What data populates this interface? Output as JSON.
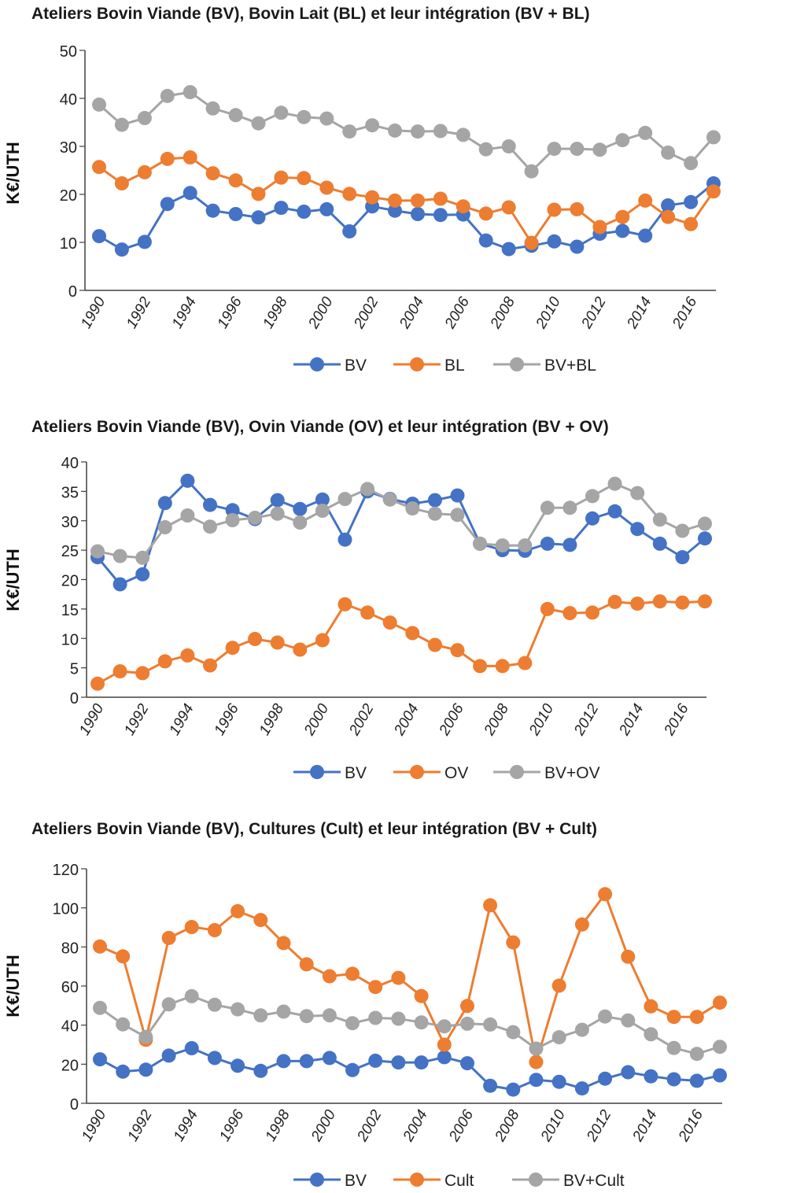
{
  "colors": {
    "blue": "#4472C4",
    "orange": "#ED7D31",
    "gray": "#A5A5A5",
    "axis": "#404040"
  },
  "chart_data": [
    {
      "type": "line",
      "title": "Ateliers Bovin Viande (BV), Bovin Lait (BL) et leur intégration (BV + BL)",
      "xlabel": "",
      "ylabel": "K€/UTH",
      "ylim": [
        0,
        50
      ],
      "yticks": [
        0,
        10,
        20,
        30,
        40,
        50
      ],
      "x": [
        1990,
        1991,
        1992,
        1993,
        1994,
        1995,
        1996,
        1997,
        1998,
        1999,
        2000,
        2001,
        2002,
        2003,
        2004,
        2005,
        2006,
        2007,
        2008,
        2009,
        2010,
        2011,
        2012,
        2013,
        2014,
        2015,
        2016,
        2017
      ],
      "xtick_labels": [
        "1990",
        "1992",
        "1994",
        "1996",
        "1998",
        "2000",
        "2002",
        "2004",
        "2006",
        "2008",
        "2010",
        "2012",
        "2014",
        "2016"
      ],
      "grid": false,
      "legend_position": "bottom",
      "series": [
        {
          "name": "BV",
          "color_key": "blue",
          "values": [
            11.3,
            8.5,
            10.1,
            18.0,
            20.3,
            16.6,
            15.9,
            15.2,
            17.2,
            16.4,
            16.9,
            12.3,
            17.5,
            16.6,
            15.9,
            15.7,
            15.8,
            10.4,
            8.6,
            9.3,
            10.2,
            9.1,
            11.8,
            12.4,
            11.4,
            17.7,
            18.4,
            22.3
          ]
        },
        {
          "name": "BL",
          "color_key": "orange",
          "values": [
            25.7,
            22.3,
            24.6,
            27.4,
            27.7,
            24.4,
            22.9,
            20.1,
            23.5,
            23.4,
            21.4,
            20.1,
            19.4,
            18.7,
            18.7,
            19.1,
            17.5,
            16.0,
            17.3,
            9.9,
            16.8,
            16.9,
            13.2,
            15.3,
            18.7,
            15.3,
            13.8,
            20.6
          ]
        },
        {
          "name": "BV+BL",
          "color_key": "gray",
          "values": [
            38.7,
            34.5,
            35.9,
            40.5,
            41.3,
            37.9,
            36.5,
            34.8,
            37.0,
            36.1,
            35.8,
            33.1,
            34.4,
            33.3,
            33.1,
            33.2,
            32.4,
            29.4,
            30.0,
            24.8,
            29.5,
            29.5,
            29.3,
            31.3,
            32.8,
            28.7,
            26.5,
            31.9
          ]
        }
      ]
    },
    {
      "type": "line",
      "title": "Ateliers Bovin Viande (BV), Ovin Viande (OV) et leur intégration (BV + OV)",
      "xlabel": "",
      "ylabel": "K€/UTH",
      "ylim": [
        0,
        40
      ],
      "yticks": [
        0,
        5,
        10,
        15,
        20,
        25,
        30,
        35,
        40
      ],
      "x": [
        1990,
        1991,
        1992,
        1993,
        1994,
        1995,
        1996,
        1997,
        1998,
        1999,
        2000,
        2001,
        2002,
        2003,
        2004,
        2005,
        2006,
        2007,
        2008,
        2009,
        2010,
        2011,
        2012,
        2013,
        2014,
        2015,
        2016,
        2017
      ],
      "xtick_labels": [
        "1990",
        "1992",
        "1994",
        "1996",
        "1998",
        "2000",
        "2002",
        "2004",
        "2006",
        "2008",
        "2010",
        "2012",
        "2014",
        "2016"
      ],
      "grid": false,
      "legend_position": "bottom",
      "series": [
        {
          "name": "BV",
          "color_key": "blue",
          "values": [
            23.8,
            19.2,
            20.9,
            33.0,
            36.8,
            32.7,
            31.8,
            30.3,
            33.5,
            32.0,
            33.6,
            26.8,
            35.0,
            33.7,
            32.9,
            33.5,
            34.3,
            26.1,
            25.0,
            24.9,
            26.1,
            25.9,
            30.4,
            31.6,
            28.6,
            26.1,
            23.8,
            27.0
          ]
        },
        {
          "name": "OV",
          "color_key": "orange",
          "values": [
            2.3,
            4.4,
            4.1,
            6.1,
            7.1,
            5.4,
            8.4,
            9.9,
            9.3,
            8.1,
            9.7,
            15.8,
            14.4,
            12.7,
            10.9,
            8.9,
            8.0,
            5.3,
            5.3,
            5.8,
            15.0,
            14.3,
            14.4,
            16.2,
            15.9,
            16.3,
            16.1,
            16.3
          ]
        },
        {
          "name": "BV+OV",
          "color_key": "gray",
          "values": [
            24.8,
            24.0,
            23.7,
            28.9,
            30.9,
            29.0,
            30.1,
            30.5,
            31.2,
            29.7,
            31.7,
            33.7,
            35.4,
            33.6,
            32.1,
            31.2,
            31.0,
            26.1,
            25.8,
            25.8,
            32.2,
            32.2,
            34.2,
            36.3,
            34.7,
            30.2,
            28.3,
            29.5
          ]
        }
      ]
    },
    {
      "type": "line",
      "title": "Ateliers Bovin Viande (BV), Cultures (Cult) et leur intégration (BV + Cult)",
      "xlabel": "",
      "ylabel": "K€/UTH",
      "ylim": [
        0,
        120
      ],
      "yticks": [
        0,
        20,
        40,
        60,
        80,
        100,
        120
      ],
      "x": [
        1990,
        1991,
        1992,
        1993,
        1994,
        1995,
        1996,
        1997,
        1998,
        1999,
        2000,
        2001,
        2002,
        2003,
        2004,
        2005,
        2006,
        2007,
        2008,
        2009,
        2010,
        2011,
        2012,
        2013,
        2014,
        2015,
        2016,
        2017
      ],
      "xtick_labels": [
        "1990",
        "1992",
        "1994",
        "1996",
        "1998",
        "2000",
        "2002",
        "2004",
        "2006",
        "2008",
        "2010",
        "2012",
        "2014",
        "2016"
      ],
      "grid": false,
      "legend_position": "bottom",
      "series": [
        {
          "name": "BV",
          "color_key": "blue",
          "values": [
            22.5,
            16.2,
            17.2,
            24.4,
            28.2,
            23.2,
            19.2,
            16.6,
            21.6,
            21.6,
            23.2,
            17.0,
            21.8,
            20.9,
            20.9,
            23.6,
            20.5,
            9.0,
            7.0,
            12.0,
            11.0,
            7.6,
            12.6,
            15.9,
            13.8,
            12.3,
            11.5,
            14.3
          ]
        },
        {
          "name": "Cult",
          "color_key": "orange",
          "values": [
            80.2,
            75.2,
            32.5,
            84.6,
            90.2,
            88.6,
            98.3,
            93.8,
            82.0,
            71.1,
            65.0,
            66.3,
            59.5,
            64.2,
            54.9,
            30.0,
            49.8,
            101.3,
            82.3,
            21.1,
            60.2,
            91.5,
            107.0,
            75.0,
            49.6,
            44.2,
            44.2,
            51.5
          ]
        },
        {
          "name": "BV+Cult",
          "color_key": "gray",
          "values": [
            48.8,
            40.4,
            33.9,
            50.6,
            54.8,
            50.4,
            48.1,
            45.0,
            46.9,
            44.6,
            45.0,
            41.0,
            43.7,
            43.3,
            41.4,
            39.4,
            40.7,
            40.3,
            36.4,
            28.0,
            33.8,
            37.6,
            44.4,
            42.4,
            35.3,
            28.3,
            25.3,
            28.9
          ]
        }
      ]
    }
  ]
}
